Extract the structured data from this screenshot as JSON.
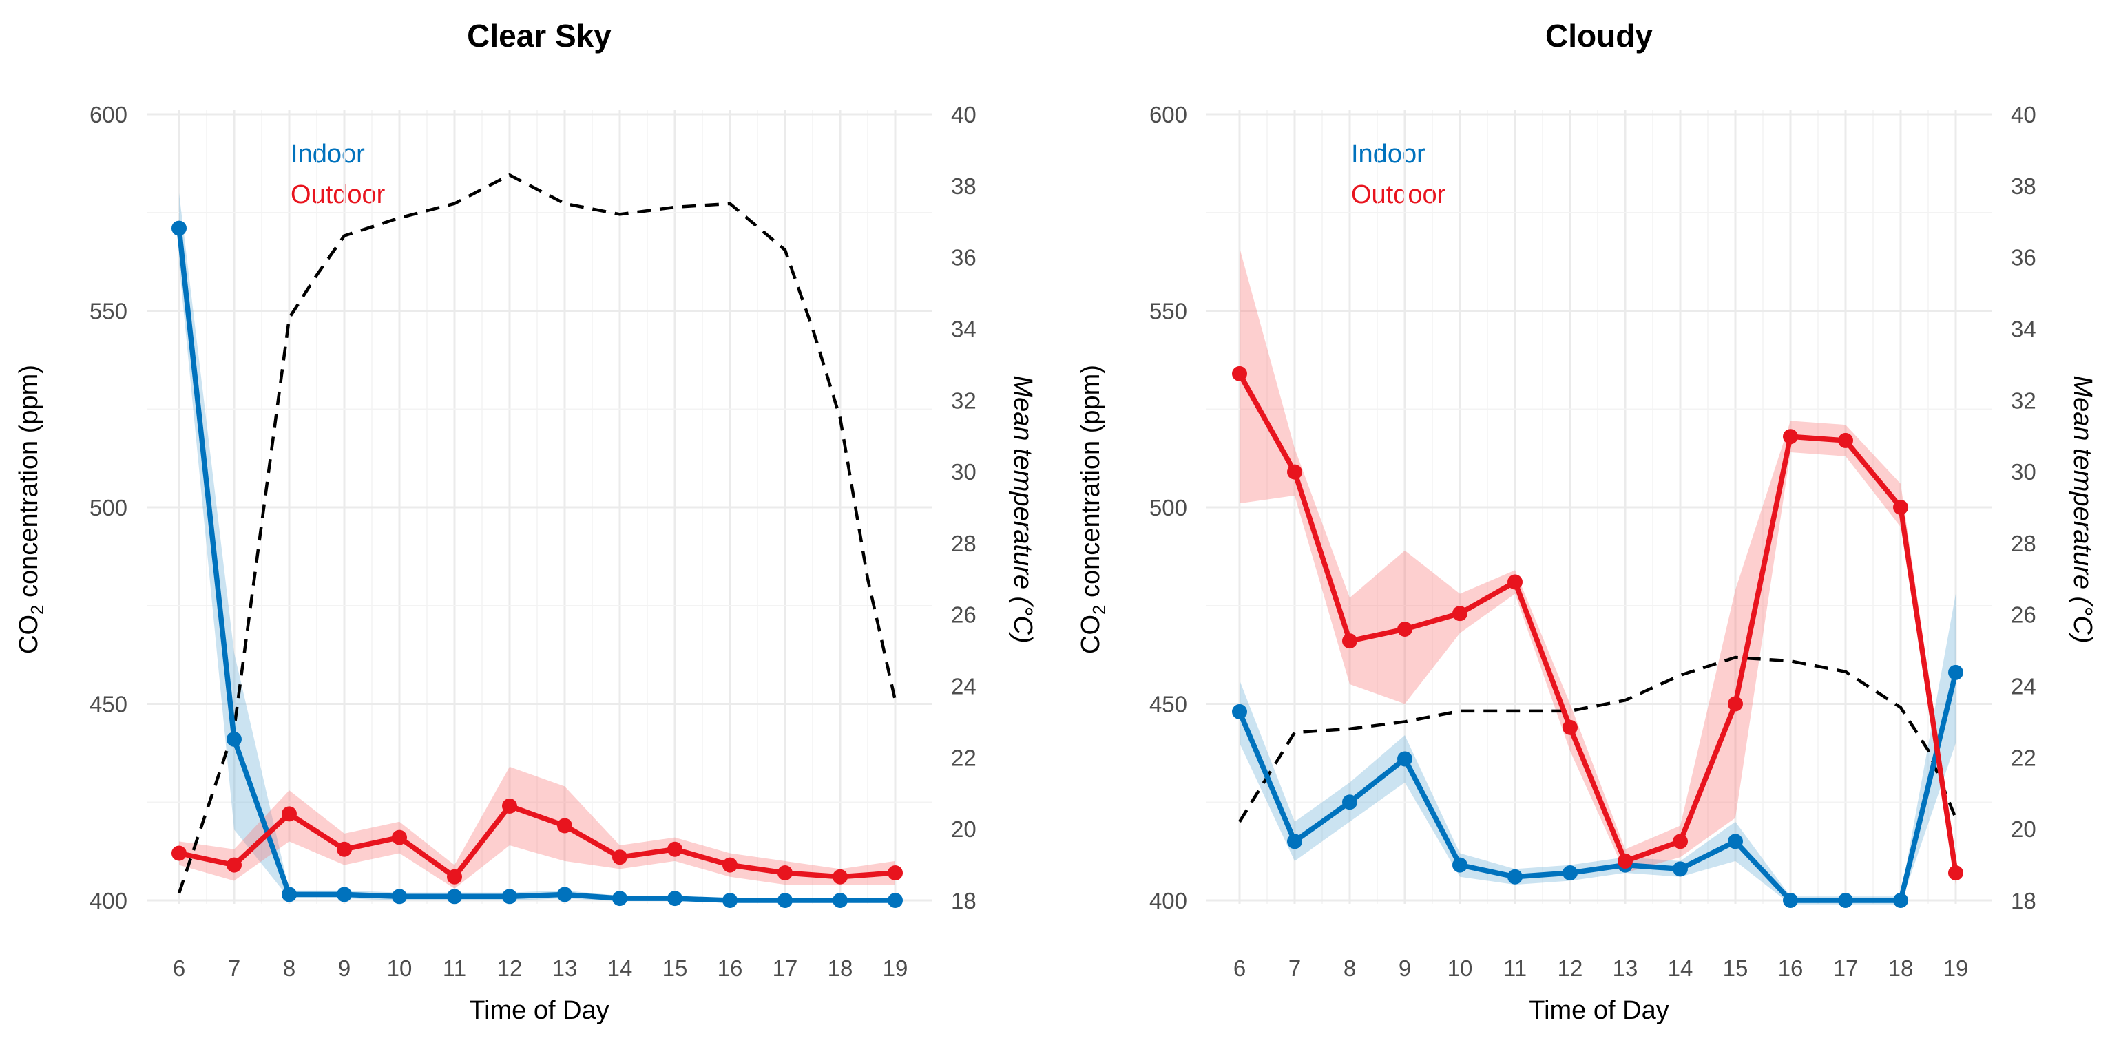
{
  "chart_data": [
    {
      "type": "line",
      "title": "Clear Sky",
      "xlabel": "Time of Day",
      "ylabel_prefix": "CO",
      "ylabel_sub": "2",
      "ylabel_suffix": " concentration (ppm)",
      "y2label": "Mean temperature (°C)",
      "x": [
        6,
        7,
        8,
        9,
        10,
        11,
        12,
        13,
        14,
        15,
        16,
        17,
        18,
        19
      ],
      "ylim": [
        400,
        600
      ],
      "yticks": [
        400,
        450,
        500,
        550,
        600
      ],
      "y2lim": [
        18,
        40
      ],
      "y2ticks": [
        18,
        20,
        22,
        24,
        26,
        28,
        30,
        32,
        34,
        36,
        38,
        40
      ],
      "grid": true,
      "legend": {
        "position": "top-left",
        "entries": [
          {
            "label": "Indoor",
            "color": "#0072BD"
          },
          {
            "label": "Outdoor",
            "color": "#E8141E"
          }
        ]
      },
      "series": [
        {
          "name": "Indoor",
          "color": "#0072BD",
          "values": [
            571,
            441,
            401.5,
            401.5,
            401,
            401,
            401,
            401.5,
            400.5,
            400.5,
            400,
            400,
            400,
            400
          ],
          "lower": [
            562,
            418,
            400.5,
            400.5,
            400,
            400,
            400,
            400.5,
            399.8,
            399.8,
            399.5,
            399.5,
            399.5,
            399.5
          ],
          "upper": [
            580,
            463,
            402.5,
            402.5,
            402,
            402,
            402,
            402.5,
            401.2,
            401.2,
            400.5,
            400.5,
            400.5,
            400.5
          ]
        },
        {
          "name": "Outdoor",
          "color": "#E8141E",
          "values": [
            412,
            409,
            422,
            413,
            416,
            406,
            424,
            419,
            411,
            413,
            409,
            407,
            406,
            407
          ],
          "lower": [
            409,
            405,
            415,
            409,
            412,
            403,
            414,
            410,
            408,
            410,
            406,
            404,
            404,
            404
          ],
          "upper": [
            415,
            413,
            428,
            417,
            420,
            409,
            434,
            429,
            414,
            416,
            412,
            410,
            408,
            410
          ]
        },
        {
          "name": "Mean temperature",
          "axis": "right",
          "style": "dashed",
          "color": "#000000",
          "x": [
            6,
            7,
            8,
            8.5,
            9,
            10,
            11,
            12,
            13,
            14,
            15,
            16,
            17,
            17.5,
            18,
            18.5,
            19
          ],
          "values": [
            18.2,
            22.8,
            34.3,
            35.5,
            36.6,
            37.1,
            37.5,
            38.3,
            37.5,
            37.2,
            37.4,
            37.5,
            36.2,
            34.0,
            31.5,
            27.0,
            23.6
          ]
        }
      ]
    },
    {
      "type": "line",
      "title": "Cloudy",
      "xlabel": "Time of Day",
      "ylabel_prefix": "CO",
      "ylabel_sub": "2",
      "ylabel_suffix": " concentration (ppm)",
      "y2label": "Mean temperature (°C)",
      "x": [
        6,
        7,
        8,
        9,
        10,
        11,
        12,
        13,
        14,
        15,
        16,
        17,
        18,
        19
      ],
      "ylim": [
        400,
        600
      ],
      "yticks": [
        400,
        450,
        500,
        550,
        600
      ],
      "y2lim": [
        18,
        40
      ],
      "y2ticks": [
        18,
        20,
        22,
        24,
        26,
        28,
        30,
        32,
        34,
        36,
        38,
        40
      ],
      "grid": true,
      "legend": {
        "position": "top-left",
        "entries": [
          {
            "label": "Indoor",
            "color": "#0072BD"
          },
          {
            "label": "Outdoor",
            "color": "#E8141E"
          }
        ]
      },
      "series": [
        {
          "name": "Indoor",
          "color": "#0072BD",
          "values": [
            448,
            415,
            425,
            436,
            409,
            406,
            407,
            409,
            408,
            415,
            400,
            400,
            400,
            458
          ],
          "lower": [
            440,
            410,
            420,
            430,
            406,
            404,
            405,
            407,
            406,
            410,
            399,
            399,
            399,
            440
          ],
          "upper": [
            456,
            420,
            430,
            442,
            412,
            408,
            409,
            411,
            410,
            420,
            401,
            401,
            401,
            478
          ]
        },
        {
          "name": "Outdoor",
          "color": "#E8141E",
          "values": [
            534,
            509,
            466,
            469,
            473,
            481,
            444,
            410,
            415,
            450,
            518,
            517,
            500,
            407
          ],
          "lower": [
            501,
            503,
            455,
            450,
            468,
            478,
            438,
            407,
            411,
            421,
            514,
            513,
            495,
            404
          ],
          "upper": [
            566,
            515,
            477,
            489,
            478,
            484,
            450,
            413,
            419,
            479,
            522,
            521,
            506,
            410
          ]
        },
        {
          "name": "Mean temperature",
          "axis": "right",
          "style": "dashed",
          "color": "#000000",
          "x": [
            6,
            7,
            8,
            9,
            10,
            11,
            12,
            13,
            14,
            15,
            16,
            17,
            18,
            18.5,
            19
          ],
          "values": [
            20.2,
            22.7,
            22.8,
            23.0,
            23.3,
            23.3,
            23.3,
            23.6,
            24.3,
            24.8,
            24.7,
            24.4,
            23.4,
            22.2,
            20.3
          ]
        }
      ]
    }
  ]
}
